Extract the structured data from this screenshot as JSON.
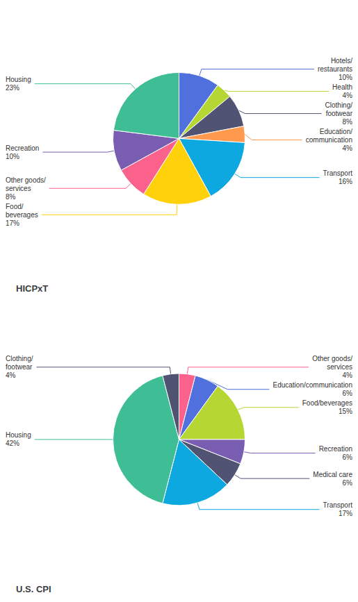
{
  "chart_data": [
    {
      "type": "pie",
      "title": "HICPxT",
      "categories": [
        "Hotels/\nrestaurants",
        "Health",
        "Clothing/\nfootwear",
        "Education/\ncommunication",
        "Transport",
        "Food/\nbeverages",
        "Other goods/\nservices",
        "Recreation",
        "Housing"
      ],
      "values": [
        10,
        4,
        8,
        4,
        16,
        17,
        8,
        10,
        23
      ],
      "value_labels": [
        "10%",
        "4%",
        "8%",
        "4%",
        "16%",
        "17%",
        "8%",
        "10%",
        "23%"
      ],
      "data_labels": true
    },
    {
      "type": "pie",
      "title": "U.S. CPI",
      "categories": [
        "Other goods/\nservices",
        "Education/communication",
        "Food/beverages",
        "Recreation",
        "Medical care",
        "Transport",
        "Housing",
        "Clothing/\nfootwear"
      ],
      "values": [
        4,
        6,
        15,
        6,
        6,
        17,
        42,
        4
      ],
      "value_labels": [
        "4%",
        "6%",
        "15%",
        "6%",
        "6%",
        "17%",
        "42%",
        "4%"
      ],
      "data_labels": true
    }
  ]
}
